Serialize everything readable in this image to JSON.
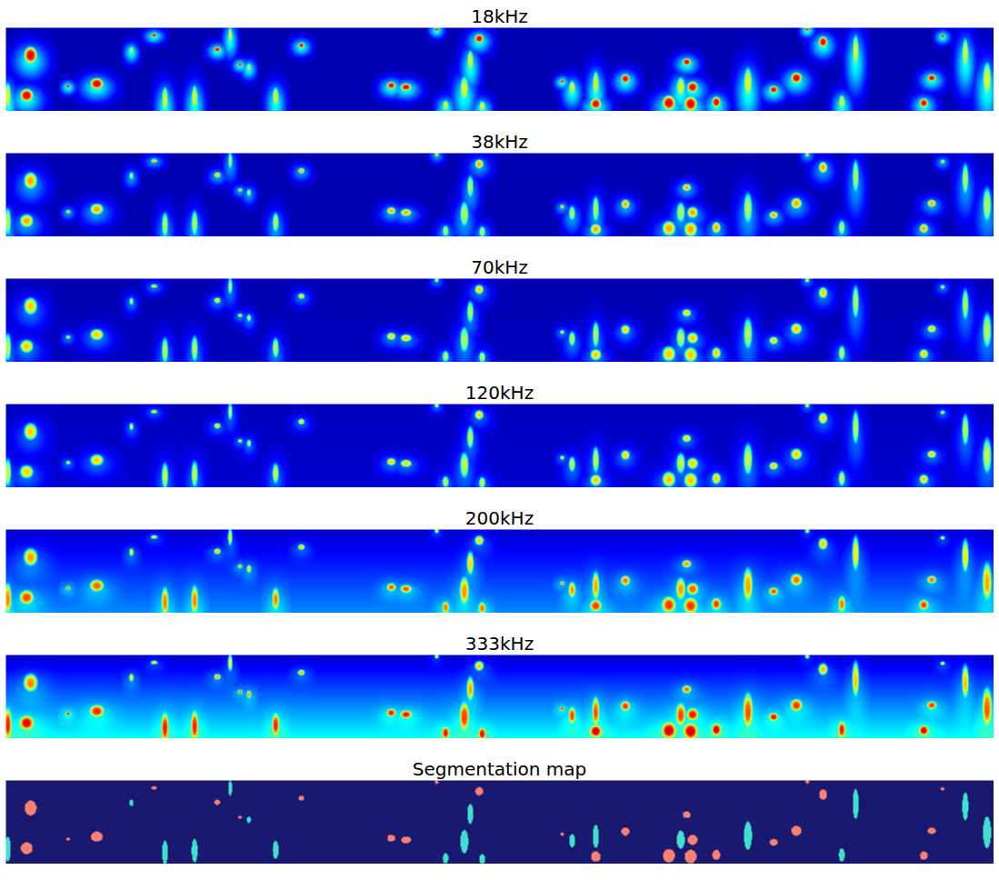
{
  "chart_data": {
    "type": "heatmap",
    "xlim": [
      0,
      1000
    ],
    "ylim": [
      0,
      100
    ],
    "tick_labels": false,
    "color_range": [
      0,
      1
    ],
    "panels": [
      {
        "title": "18kHz",
        "background": [
          0.05,
          0.05
        ],
        "round_level": 0.84,
        "long_level": 0.55,
        "halo_level": 0.33
      },
      {
        "title": "38kHz",
        "background": [
          0.05,
          0.05
        ],
        "round_level": 0.66,
        "long_level": 0.5,
        "halo_level": 0.22
      },
      {
        "title": "70kHz",
        "background": [
          0.05,
          0.06
        ],
        "round_level": 0.62,
        "long_level": 0.5,
        "halo_level": 0.18
      },
      {
        "title": "120kHz",
        "background": [
          0.06,
          0.08
        ],
        "round_level": 0.6,
        "long_level": 0.5,
        "halo_level": 0.15
      },
      {
        "title": "200kHz",
        "background": [
          0.07,
          0.26
        ],
        "round_level": 0.58,
        "long_level": 0.52,
        "halo_level": 0.1
      },
      {
        "title": "333kHz",
        "background": [
          0.07,
          0.38
        ],
        "round_level": 0.57,
        "long_level": 0.52,
        "halo_level": 0.08
      },
      {
        "title": "Segmentation map",
        "type": "segmentation",
        "colors": [
          "#191970",
          "#fa8072",
          "#40e0d0"
        ]
      }
    ],
    "schools": [
      {
        "x": 25,
        "y": 33,
        "rx": 6,
        "ry": 9,
        "shape": "round"
      },
      {
        "x": 21,
        "y": 81,
        "rx": 6,
        "ry": 7,
        "shape": "round"
      },
      {
        "x": 63,
        "y": 70,
        "rx": 2,
        "ry": 2,
        "shape": "round"
      },
      {
        "x": 92,
        "y": 67,
        "rx": 6,
        "ry": 6,
        "shape": "round"
      },
      {
        "x": 150,
        "y": 9,
        "rx": 3,
        "ry": 2,
        "shape": "round"
      },
      {
        "x": 214,
        "y": 26,
        "rx": 3,
        "ry": 3,
        "shape": "round"
      },
      {
        "x": 237,
        "y": 44,
        "rx": 2,
        "ry": 2,
        "shape": "round"
      },
      {
        "x": 299,
        "y": 21,
        "rx": 3,
        "ry": 3,
        "shape": "round"
      },
      {
        "x": 390,
        "y": 69,
        "rx": 4,
        "ry": 4,
        "shape": "round"
      },
      {
        "x": 405,
        "y": 71,
        "rx": 5,
        "ry": 4,
        "shape": "round"
      },
      {
        "x": 436,
        "y": 2,
        "rx": 2,
        "ry": 2,
        "shape": "round"
      },
      {
        "x": 479,
        "y": 13,
        "rx": 4,
        "ry": 5,
        "shape": "round"
      },
      {
        "x": 563,
        "y": 64,
        "rx": 2,
        "ry": 2,
        "shape": "round"
      },
      {
        "x": 597,
        "y": 91,
        "rx": 5,
        "ry": 6,
        "shape": "round"
      },
      {
        "x": 627,
        "y": 61,
        "rx": 4,
        "ry": 5,
        "shape": "round"
      },
      {
        "x": 671,
        "y": 90,
        "rx": 6,
        "ry": 8,
        "shape": "round"
      },
      {
        "x": 693,
        "y": 91,
        "rx": 6,
        "ry": 8,
        "shape": "round"
      },
      {
        "x": 695,
        "y": 71,
        "rx": 5,
        "ry": 6,
        "shape": "round"
      },
      {
        "x": 689,
        "y": 41,
        "rx": 4,
        "ry": 4,
        "shape": "round"
      },
      {
        "x": 719,
        "y": 89,
        "rx": 4,
        "ry": 6,
        "shape": "round"
      },
      {
        "x": 777,
        "y": 74,
        "rx": 4,
        "ry": 4,
        "shape": "round"
      },
      {
        "x": 800,
        "y": 60,
        "rx": 5,
        "ry": 6,
        "shape": "round"
      },
      {
        "x": 811,
        "y": 2,
        "rx": 2,
        "ry": 2,
        "shape": "round"
      },
      {
        "x": 827,
        "y": 17,
        "rx": 4,
        "ry": 6,
        "shape": "round"
      },
      {
        "x": 937,
        "y": 60,
        "rx": 4,
        "ry": 4,
        "shape": "round"
      },
      {
        "x": 929,
        "y": 90,
        "rx": 4,
        "ry": 5,
        "shape": "round"
      },
      {
        "x": 948,
        "y": 10,
        "rx": 2,
        "ry": 2,
        "shape": "round"
      },
      {
        "x": 2,
        "y": 82,
        "rx": 3,
        "ry": 15,
        "shape": "long"
      },
      {
        "x": 161,
        "y": 86,
        "rx": 3,
        "ry": 14,
        "shape": "long"
      },
      {
        "x": 191,
        "y": 84,
        "rx": 3,
        "ry": 14,
        "shape": "long"
      },
      {
        "x": 227,
        "y": 9,
        "rx": 2,
        "ry": 9,
        "shape": "long"
      },
      {
        "x": 246,
        "y": 47,
        "rx": 2,
        "ry": 4,
        "shape": "long"
      },
      {
        "x": 273,
        "y": 83,
        "rx": 3,
        "ry": 11,
        "shape": "long"
      },
      {
        "x": 127,
        "y": 27,
        "rx": 2,
        "ry": 4,
        "shape": "long"
      },
      {
        "x": 445,
        "y": 93,
        "rx": 3,
        "ry": 6,
        "shape": "long"
      },
      {
        "x": 464,
        "y": 73,
        "rx": 4,
        "ry": 14,
        "shape": "long"
      },
      {
        "x": 470,
        "y": 40,
        "rx": 3,
        "ry": 12,
        "shape": "long"
      },
      {
        "x": 482,
        "y": 94,
        "rx": 3,
        "ry": 6,
        "shape": "long"
      },
      {
        "x": 573,
        "y": 72,
        "rx": 3,
        "ry": 8,
        "shape": "long"
      },
      {
        "x": 597,
        "y": 67,
        "rx": 3,
        "ry": 14,
        "shape": "long"
      },
      {
        "x": 683,
        "y": 71,
        "rx": 4,
        "ry": 11,
        "shape": "long"
      },
      {
        "x": 751,
        "y": 66,
        "rx": 4,
        "ry": 17,
        "shape": "long"
      },
      {
        "x": 846,
        "y": 89,
        "rx": 3,
        "ry": 8,
        "shape": "long"
      },
      {
        "x": 860,
        "y": 28,
        "rx": 3,
        "ry": 18,
        "shape": "long"
      },
      {
        "x": 971,
        "y": 31,
        "rx": 3,
        "ry": 17,
        "shape": "long"
      },
      {
        "x": 993,
        "y": 62,
        "rx": 4,
        "ry": 19,
        "shape": "long"
      }
    ]
  }
}
